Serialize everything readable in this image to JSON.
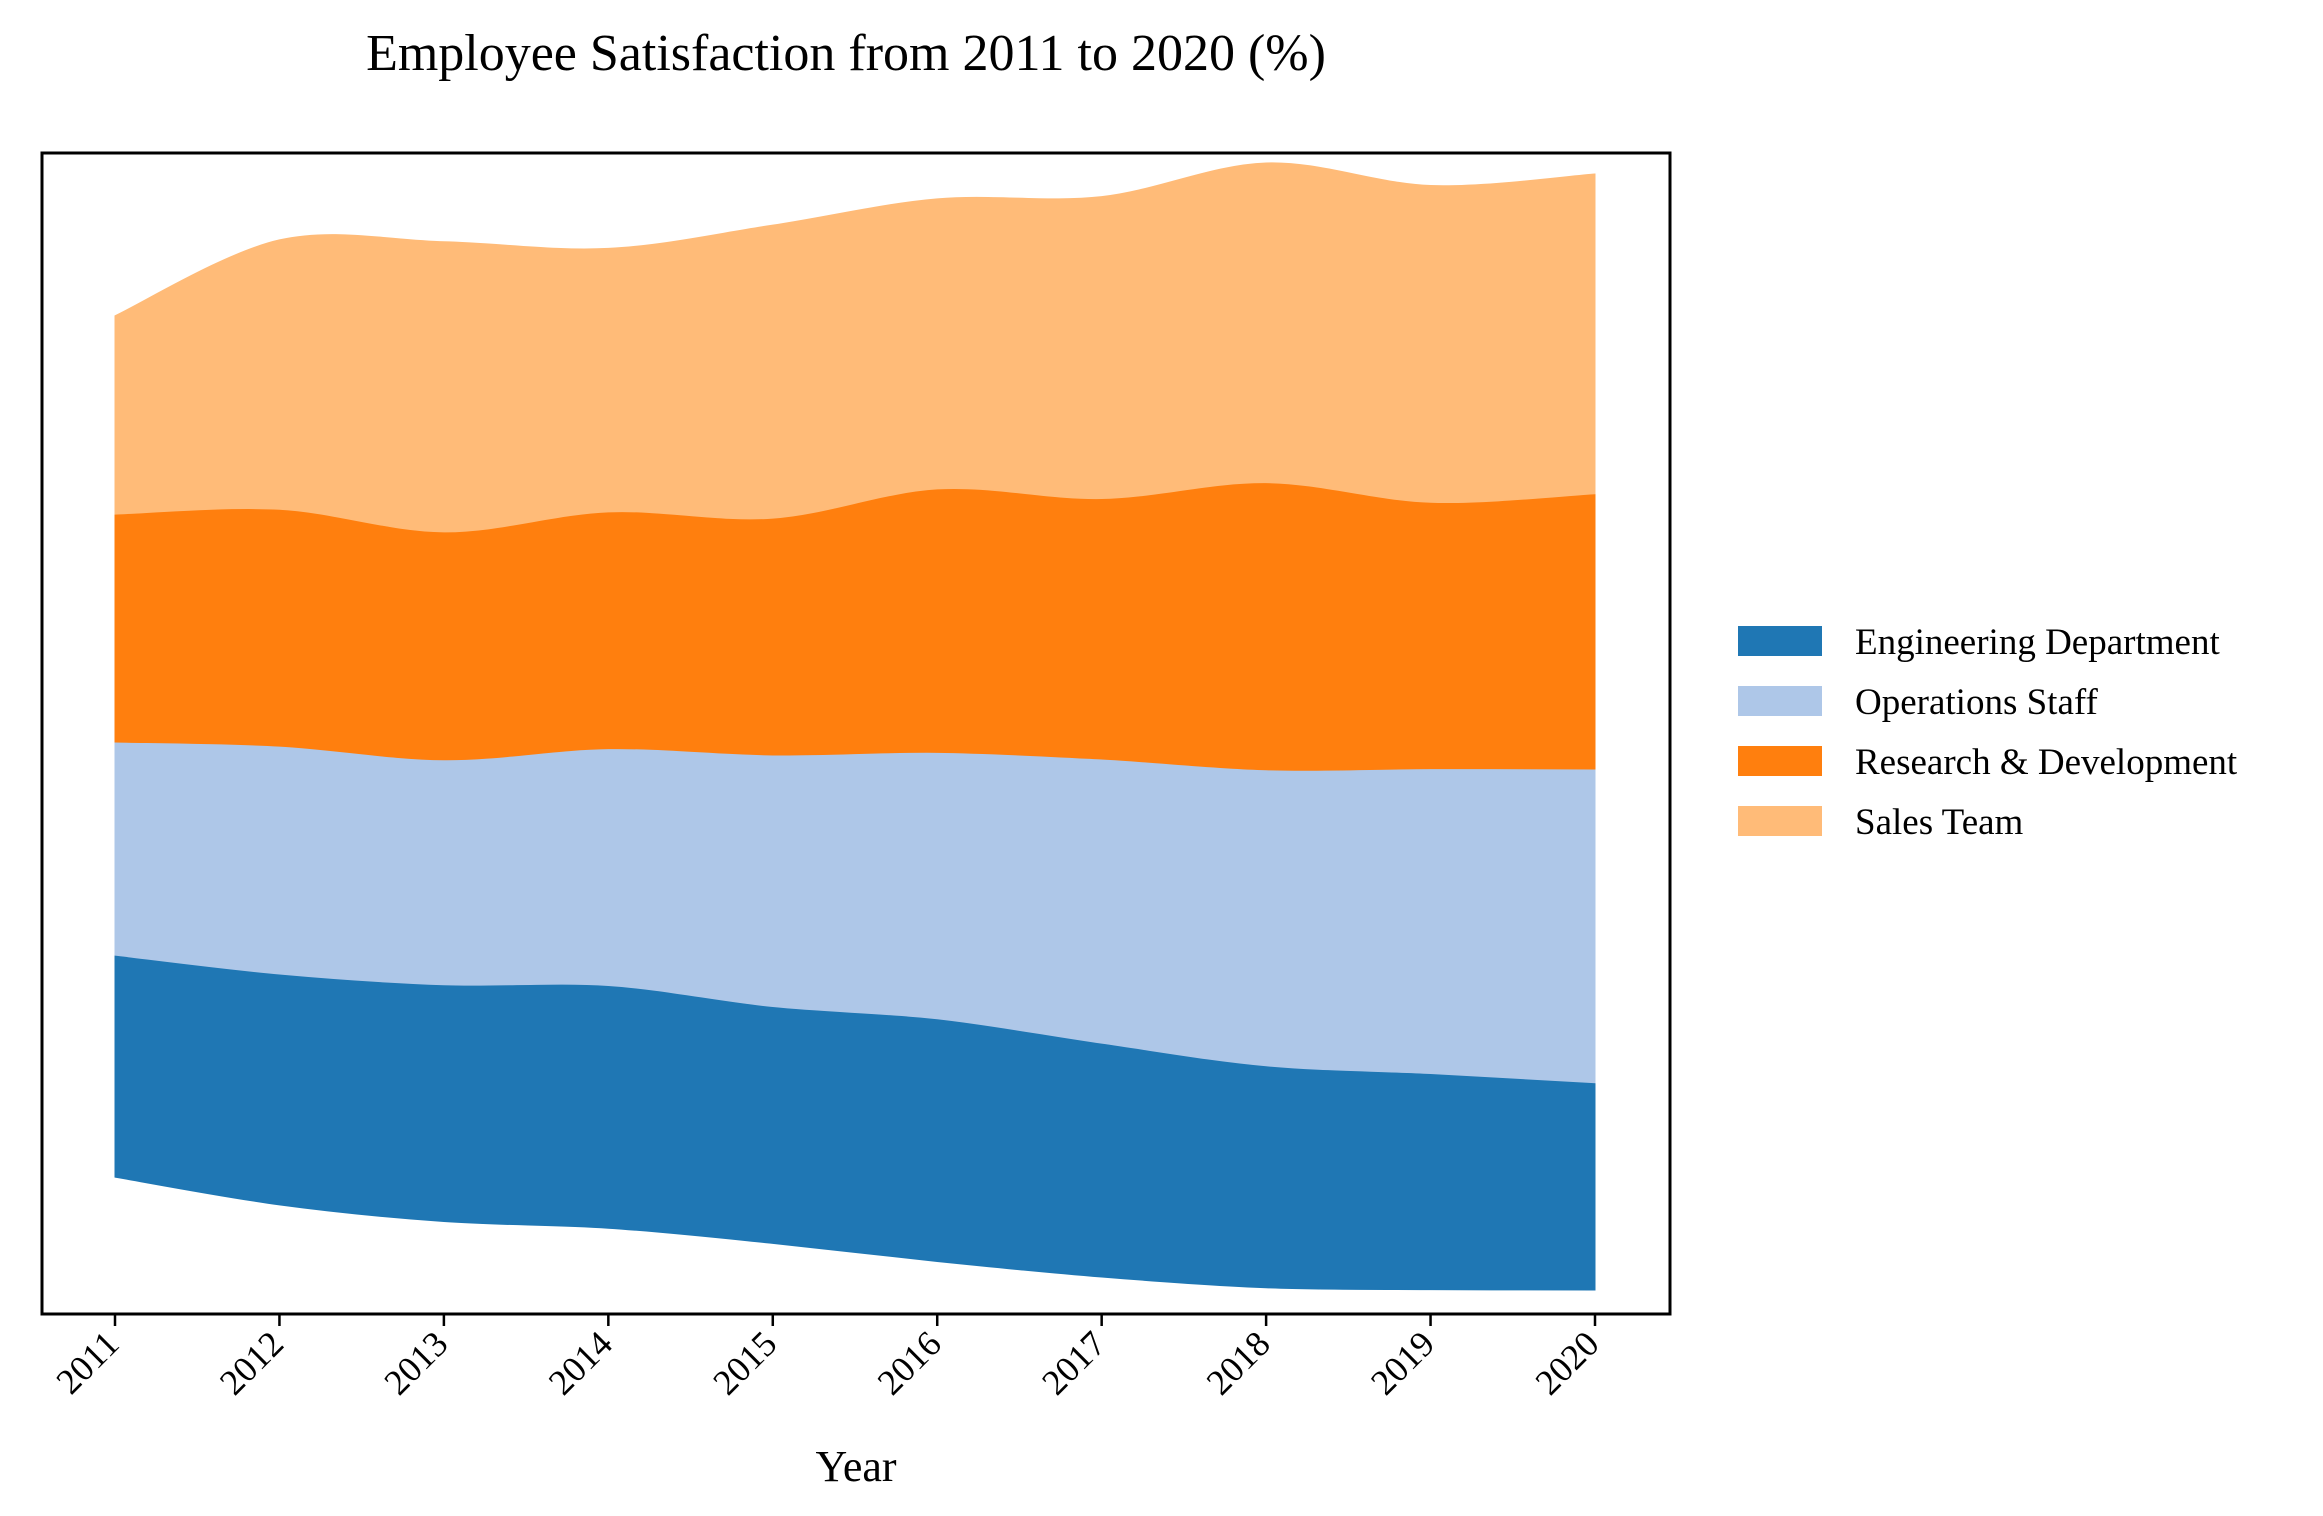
{
  "chart_data": {
    "type": "area",
    "subtype": "streamgraph",
    "title": "Employee Satisfaction from 2011 to 2020 (%)",
    "xlabel": "Year",
    "ylabel": "",
    "x": [
      "2011",
      "2012",
      "2013",
      "2014",
      "2015",
      "2016",
      "2017",
      "2018",
      "2019",
      "2020"
    ],
    "series": [
      {
        "name": "Engineering Department",
        "color": "#1f77b4",
        "values": [
          75,
          78,
          80,
          82,
          80,
          82,
          79,
          75,
          73,
          70
        ]
      },
      {
        "name": "Operations Staff",
        "color": "#aec7e8",
        "values": [
          72,
          77,
          76,
          80,
          85,
          90,
          96,
          100,
          103,
          106
        ]
      },
      {
        "name": "Research & Development",
        "color": "#ff7f0e",
        "values": [
          77,
          80,
          77,
          80,
          80,
          89,
          88,
          97,
          90,
          93
        ]
      },
      {
        "name": "Sales Team",
        "color": "#ffbb78",
        "values": [
          67,
          91,
          98,
          89,
          99,
          98,
          102,
          108,
          107,
          108
        ]
      }
    ],
    "grid": false,
    "yticks_visible": false,
    "legend": {
      "position": "right",
      "entries": [
        "Engineering Department",
        "Operations Staff",
        "Research & Development",
        "Sales Team"
      ]
    }
  }
}
